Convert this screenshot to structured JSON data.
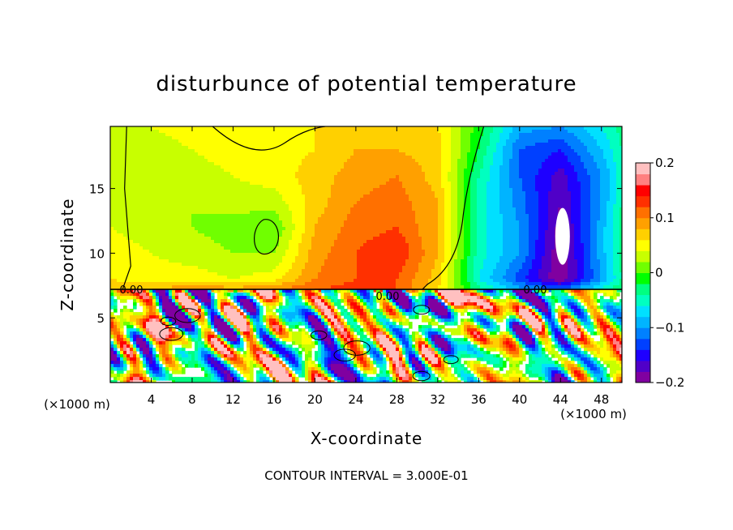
{
  "chart_data": {
    "type": "heatmap",
    "title": "disturbunce of potential temperature",
    "xlabel": "X-coordinate",
    "ylabel": "Z-coordinate",
    "x_unit_label_left": "(×1000 m)",
    "x_unit_label_right": "(×1000 m)",
    "xlim": [
      0,
      50
    ],
    "ylim": [
      0,
      19.8
    ],
    "x_ticks": [
      4,
      8,
      12,
      16,
      20,
      24,
      28,
      32,
      36,
      40,
      44,
      48
    ],
    "y_ticks": [
      5,
      10,
      15
    ],
    "colorbar": {
      "range": [
        -0.2,
        0.2
      ],
      "tick_labels": [
        "0.2",
        "0.1",
        "0",
        "−0.1",
        "−0.2"
      ],
      "tick_values": [
        0.2,
        0.1,
        0,
        -0.1,
        -0.2
      ],
      "colors": [
        "#8000a0",
        "#5000c8",
        "#1e00ff",
        "#0040ff",
        "#0080ff",
        "#00b4ff",
        "#00e0ff",
        "#00ffc0",
        "#00ff80",
        "#00ff00",
        "#70ff00",
        "#c8ff00",
        "#ffff00",
        "#ffd000",
        "#ffa000",
        "#ff7000",
        "#ff3000",
        "#ff0000",
        "#ff8080",
        "#ffc0c0"
      ]
    },
    "contour_labels": [
      "0.00",
      "0.00",
      "0.00"
    ],
    "contour_interval_text": "CONTOUR INTERVAL = 3.000E-01",
    "upper_field_levels": [
      {
        "x": 0,
        "values": [
          0.03,
          0.03,
          0.02,
          0.03,
          0.04,
          0.05,
          0.06,
          0.07
        ]
      },
      {
        "x": 4,
        "values": [
          0.04,
          0.03,
          0.02,
          0.02,
          0.03,
          0.04,
          0.05,
          0.08
        ]
      },
      {
        "x": 8,
        "values": [
          0.05,
          0.04,
          0.03,
          0.02,
          0.02,
          0.03,
          0.05,
          0.1
        ]
      },
      {
        "x": 12,
        "values": [
          0.06,
          0.05,
          0.04,
          0.03,
          0.01,
          0.02,
          0.04,
          0.09
        ]
      },
      {
        "x": 16,
        "values": [
          0.06,
          0.05,
          0.05,
          0.03,
          0.0,
          0.02,
          0.05,
          0.1
        ]
      },
      {
        "x": 20,
        "values": [
          0.06,
          0.06,
          0.07,
          0.07,
          0.08,
          0.09,
          0.1,
          0.12
        ]
      },
      {
        "x": 24,
        "values": [
          0.07,
          0.08,
          0.09,
          0.1,
          0.11,
          0.12,
          0.12,
          0.13
        ]
      },
      {
        "x": 28,
        "values": [
          0.07,
          0.08,
          0.1,
          0.11,
          0.12,
          0.14,
          0.12,
          0.12
        ]
      },
      {
        "x": 32,
        "values": [
          0.06,
          0.07,
          0.07,
          0.08,
          0.08,
          0.08,
          0.07,
          0.06
        ]
      },
      {
        "x": 36,
        "values": [
          -0.01,
          -0.02,
          -0.04,
          -0.05,
          -0.05,
          -0.05,
          -0.06,
          -0.03
        ]
      },
      {
        "x": 40,
        "values": [
          -0.09,
          -0.12,
          -0.12,
          -0.11,
          -0.1,
          -0.1,
          -0.13,
          -0.09
        ]
      },
      {
        "x": 44,
        "values": [
          -0.1,
          -0.14,
          -0.17,
          -0.18,
          -0.19,
          -0.2,
          -0.2,
          -0.12
        ]
      },
      {
        "x": 48,
        "values": [
          -0.06,
          -0.08,
          -0.1,
          -0.1,
          -0.09,
          -0.09,
          -0.1,
          -0.05
        ]
      },
      {
        "x": 50,
        "values": [
          -0.03,
          -0.04,
          -0.05,
          -0.04,
          -0.03,
          -0.03,
          -0.04,
          -0.02
        ]
      }
    ],
    "upper_field_z": [
      19.8,
      18,
      16,
      14,
      12,
      10,
      8,
      7.2
    ],
    "lower_layer_top_z": 7.2,
    "lower_layer_note": "turbulent field, values span the full colorbar range"
  }
}
